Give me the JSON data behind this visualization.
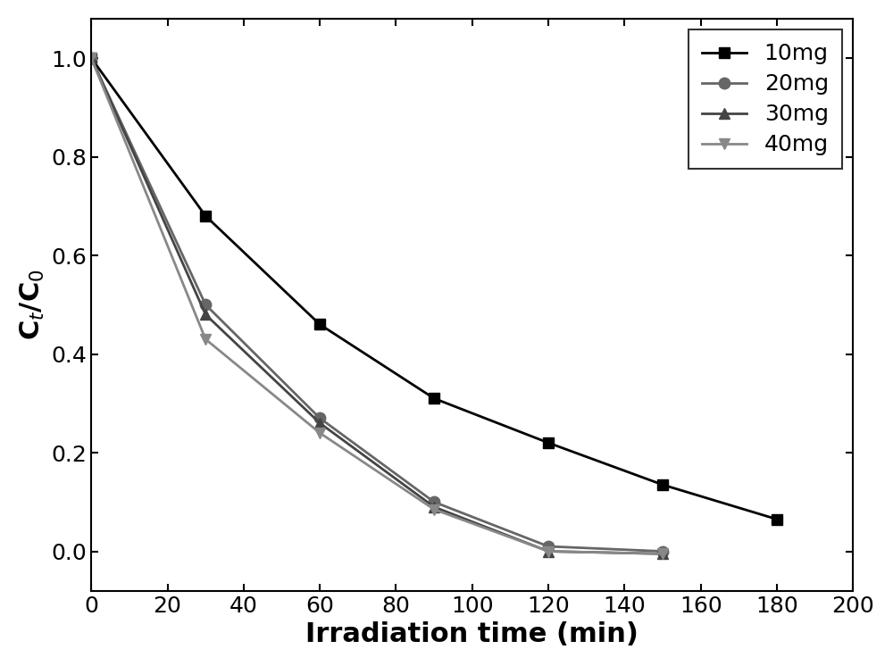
{
  "series": [
    {
      "label": "10mg",
      "color": "#000000",
      "marker": "s",
      "markercolor": "#000000",
      "x": [
        0,
        30,
        60,
        90,
        120,
        150,
        180
      ],
      "y": [
        1.0,
        0.68,
        0.46,
        0.31,
        0.22,
        0.135,
        0.065
      ]
    },
    {
      "label": "20mg",
      "color": "#666666",
      "marker": "o",
      "markercolor": "#666666",
      "x": [
        0,
        30,
        60,
        90,
        120,
        150
      ],
      "y": [
        1.0,
        0.5,
        0.27,
        0.1,
        0.01,
        0.0
      ]
    },
    {
      "label": "30mg",
      "color": "#444444",
      "marker": "^",
      "markercolor": "#444444",
      "x": [
        0,
        30,
        60,
        90,
        120,
        150
      ],
      "y": [
        1.0,
        0.48,
        0.26,
        0.09,
        0.0,
        -0.005
      ]
    },
    {
      "label": "40mg",
      "color": "#888888",
      "marker": "v",
      "markercolor": "#888888",
      "x": [
        0,
        30,
        60,
        90,
        120,
        150
      ],
      "y": [
        1.0,
        0.43,
        0.24,
        0.085,
        0.0,
        -0.005
      ]
    }
  ],
  "xlabel": "Irradiation time (min)",
  "ylabel": "C$_t$/C$_0$",
  "xlim": [
    0,
    200
  ],
  "ylim": [
    -0.08,
    1.08
  ],
  "xticks": [
    0,
    20,
    40,
    60,
    80,
    100,
    120,
    140,
    160,
    180,
    200
  ],
  "yticks": [
    0.0,
    0.2,
    0.4,
    0.6,
    0.8,
    1.0
  ],
  "legend_loc": "upper right",
  "linewidth": 2.0,
  "markersize": 9,
  "background_color": "#ffffff",
  "xlabel_fontsize": 22,
  "ylabel_fontsize": 22,
  "tick_fontsize": 18,
  "legend_fontsize": 18
}
